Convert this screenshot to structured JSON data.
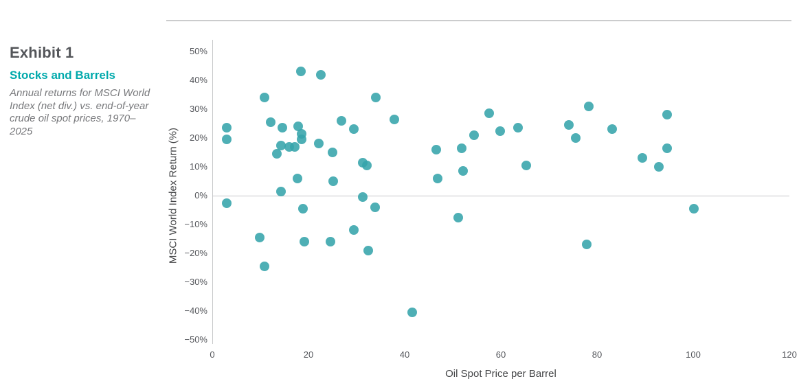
{
  "exhibit": {
    "label": "Exhibit 1",
    "title": "Stocks and Barrels",
    "description": "Annual returns for MSCI World Index (net div.) vs. end-of-year crude oil spot prices, 1970–2025"
  },
  "colors": {
    "accent_teal": "#00a9ac",
    "dot_teal": "#35a4ab",
    "axis_line_gray": "#c7c8ca",
    "tick_text_gray": "#54565b",
    "top_rule_gray": "#cbcccd"
  },
  "chart_data": {
    "type": "scatter",
    "title": "Stocks and Barrels",
    "subtitle": "Annual returns for MSCI World Index (net div.) vs. end-of-year crude oil spot prices, 1970–2025",
    "xlabel": "Oil Spot Price per Barrel",
    "ylabel": "MSCI World Index Return (%)",
    "xlim": [
      0,
      120
    ],
    "ylim": [
      -50,
      50
    ],
    "grid": "zero-line-only",
    "legend": "none",
    "x_ticks": [
      [
        0,
        "0"
      ],
      [
        20,
        "20"
      ],
      [
        40,
        "40"
      ],
      [
        60,
        "60"
      ],
      [
        80,
        "80"
      ],
      [
        100,
        "100"
      ],
      [
        120,
        "120"
      ]
    ],
    "y_ticks": [
      [
        50,
        "50%"
      ],
      [
        40,
        "40%"
      ],
      [
        30,
        "30%"
      ],
      [
        20,
        "20%"
      ],
      [
        10,
        "10%"
      ],
      [
        0,
        "0%"
      ],
      [
        -10,
        "−10%"
      ],
      [
        -20,
        "−20%"
      ],
      [
        -30,
        "−30%"
      ],
      [
        -40,
        "−40%"
      ],
      [
        -50,
        "−50%"
      ]
    ],
    "points": [
      [
        3,
        23.5
      ],
      [
        3,
        19.5
      ],
      [
        3,
        -2.5
      ],
      [
        10.9,
        34
      ],
      [
        12.1,
        25.5
      ],
      [
        14.6,
        23.5
      ],
      [
        17.8,
        24
      ],
      [
        18.6,
        21.5
      ],
      [
        18.6,
        19.5
      ],
      [
        14.3,
        17.5
      ],
      [
        16,
        17
      ],
      [
        17.1,
        17
      ],
      [
        13.4,
        14.5
      ],
      [
        22.2,
        18
      ],
      [
        25,
        15
      ],
      [
        18.4,
        43
      ],
      [
        22.6,
        42
      ],
      [
        26.9,
        26
      ],
      [
        29.4,
        23
      ],
      [
        31.3,
        11.5
      ],
      [
        32.1,
        10.5
      ],
      [
        17.7,
        6
      ],
      [
        25.1,
        5
      ],
      [
        14.3,
        1.5
      ],
      [
        31.3,
        -0.5
      ],
      [
        18.8,
        -4.5
      ],
      [
        33.8,
        -4
      ],
      [
        9.9,
        -14.5
      ],
      [
        19.2,
        -16
      ],
      [
        24.5,
        -16
      ],
      [
        29.4,
        -12
      ],
      [
        32.4,
        -19
      ],
      [
        10.9,
        -24.5
      ],
      [
        34,
        34
      ],
      [
        37.8,
        26.5
      ],
      [
        46.5,
        16
      ],
      [
        51.8,
        16.5
      ],
      [
        54.4,
        21
      ],
      [
        57.6,
        28.5
      ],
      [
        59.8,
        22.5
      ],
      [
        63.5,
        23.5
      ],
      [
        65.3,
        10.5
      ],
      [
        52.1,
        8.5
      ],
      [
        46.8,
        6
      ],
      [
        51.1,
        -7.5
      ],
      [
        41.5,
        -40.5
      ],
      [
        78.3,
        31
      ],
      [
        74.1,
        24.5
      ],
      [
        75.6,
        20
      ],
      [
        83.2,
        23
      ],
      [
        94.6,
        28
      ],
      [
        94.5,
        16.5
      ],
      [
        89.4,
        13
      ],
      [
        92.8,
        10
      ],
      [
        100.2,
        -4.5
      ],
      [
        77.8,
        -17
      ]
    ]
  }
}
